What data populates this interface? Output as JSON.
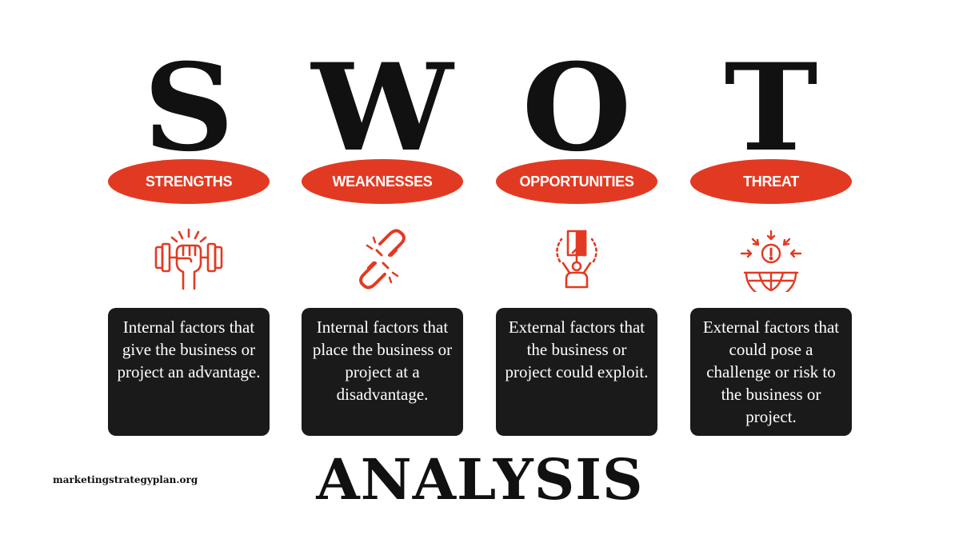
{
  "quadrants": [
    {
      "letter": "S",
      "label": "STRENGTHS",
      "icon": "dumbbell-fist-icon",
      "description": "Internal factors that give the business or project an advantage."
    },
    {
      "letter": "W",
      "label": "WEAKNESSES",
      "icon": "broken-chain-icon",
      "description": "Internal factors that place the business or project at a disadvantage."
    },
    {
      "letter": "O",
      "label": "OPPORTUNITIES",
      "icon": "person-door-icon",
      "description": "External factors that the business or project could exploit."
    },
    {
      "letter": "T",
      "label": "THREAT",
      "icon": "globe-warning-icon",
      "description": "External factors that could pose a challenge or risk to the business or project."
    }
  ],
  "footer": {
    "title": "ANALYSIS",
    "website": "marketingstrategyplan.org"
  },
  "colors": {
    "accent": "#e23a22",
    "box": "#1a1a1a",
    "text": "#111111"
  }
}
